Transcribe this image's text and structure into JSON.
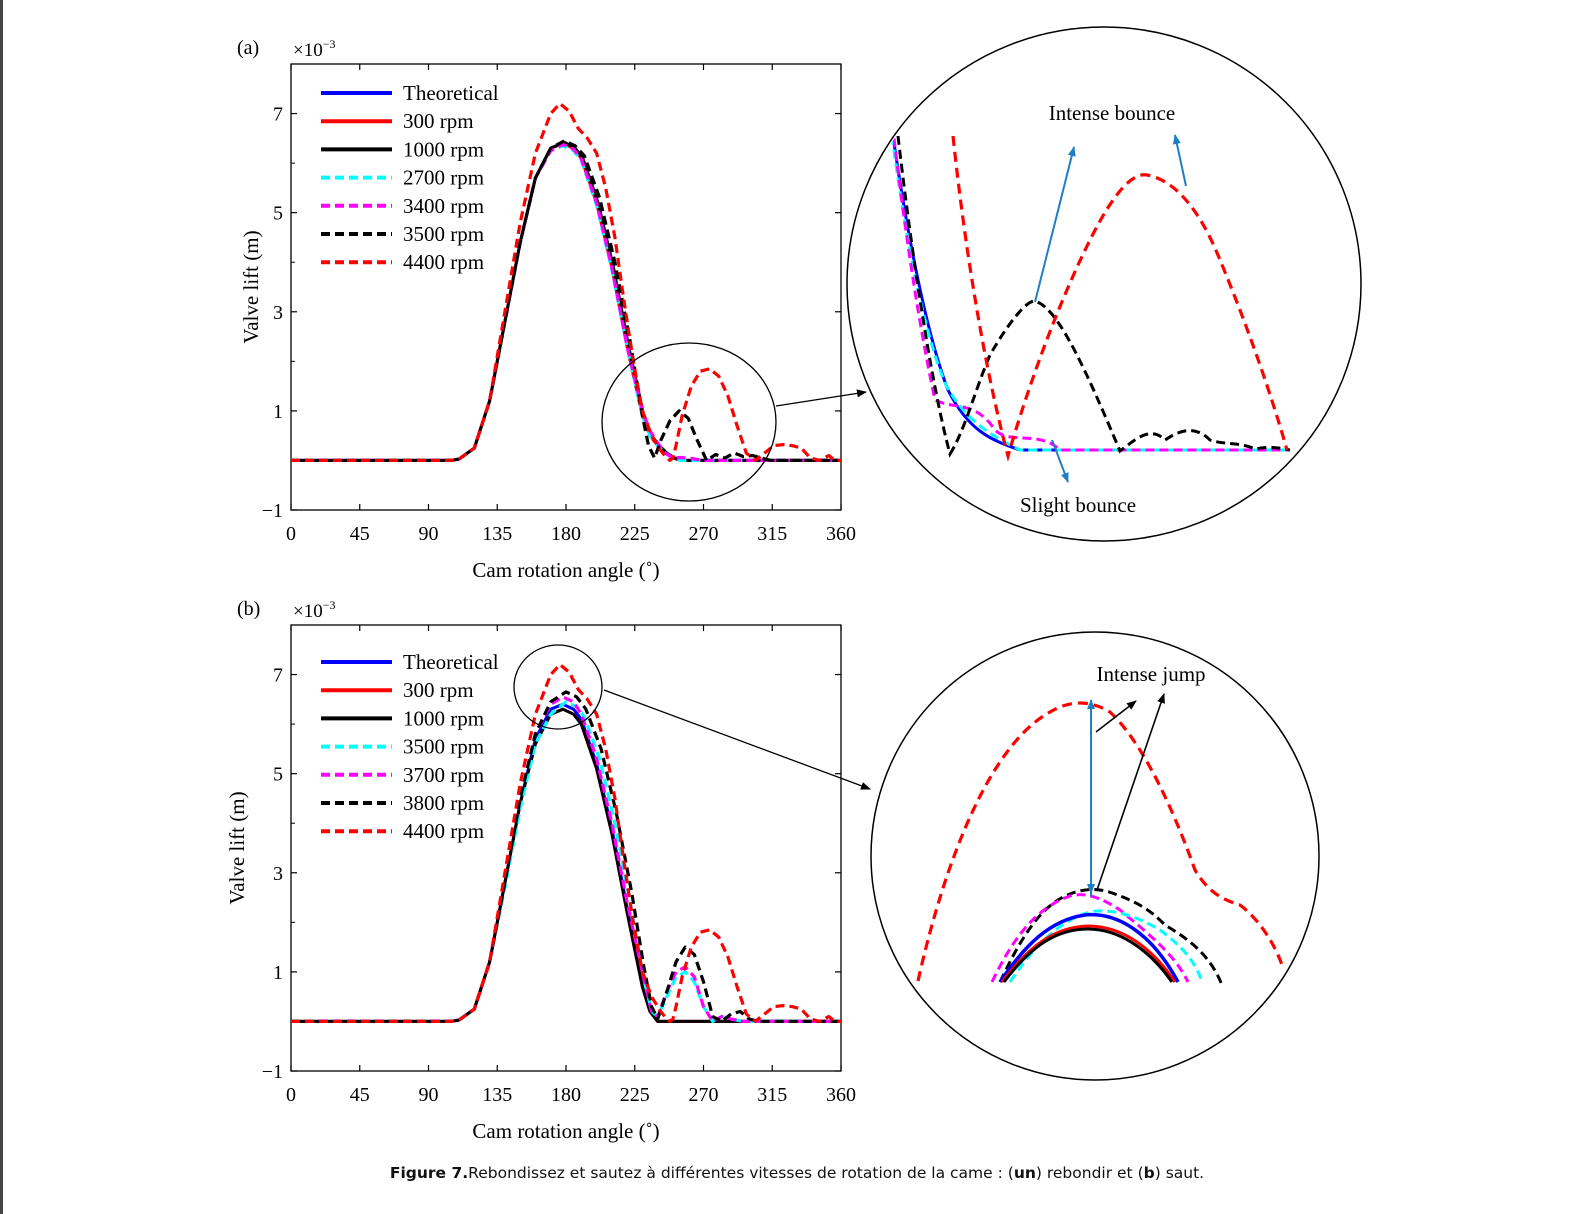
{
  "caption": {
    "label": "Figure 7.",
    "text_1": "Rebondissez et sautez à différentes vitesses de rotation de la came : (",
    "bold_a": "un",
    "text_2": ") rebondir et (",
    "bold_b": "b",
    "text_3": ") saut."
  },
  "colors": {
    "theoretical": "#0000ff",
    "rpm300": "#ff0000",
    "rpm1000": "#000000",
    "cyan": "#00ffff",
    "magenta": "#ff00ff",
    "black_dashed": "#000000",
    "red_dashed": "#ff0000",
    "annotation_blue": "#1f7fc4"
  },
  "chart_data": [
    {
      "panel_label": "(a)",
      "type": "line",
      "scale_label": "×10",
      "scale_exponent": "−3",
      "xlabel": "Cam rotation angle (˚)",
      "ylabel": "Valve lift (m)",
      "xlim": [
        0,
        360
      ],
      "ylim": [
        -1,
        8
      ],
      "xticks": [
        "0",
        "45",
        "90",
        "135",
        "180",
        "225",
        "270",
        "315",
        "360"
      ],
      "yticks": [
        "−1",
        "1",
        "3",
        "5",
        "7"
      ],
      "legend_position": "top-left",
      "series": [
        {
          "name": "Theoretical",
          "style": "solid",
          "color": "#0000ff",
          "x": [
            0,
            105,
            110,
            120,
            130,
            140,
            150,
            160,
            170,
            178,
            185,
            190,
            200,
            210,
            220,
            230,
            235,
            240,
            245,
            250,
            255,
            360
          ],
          "y": [
            0,
            0,
            0.03,
            0.25,
            1.2,
            2.8,
            4.4,
            5.7,
            6.3,
            6.4,
            6.3,
            6.1,
            5.2,
            3.9,
            2.3,
            0.9,
            0.5,
            0.3,
            0.15,
            0.05,
            0,
            0
          ]
        },
        {
          "name": "300   rpm",
          "style": "solid",
          "color": "#ff0000",
          "x": [
            0,
            105,
            110,
            120,
            130,
            140,
            150,
            160,
            170,
            178,
            185,
            190,
            200,
            210,
            220,
            230,
            235,
            240,
            245,
            250,
            255,
            360
          ],
          "y": [
            0,
            0,
            0.03,
            0.25,
            1.2,
            2.8,
            4.4,
            5.7,
            6.3,
            6.4,
            6.3,
            6.1,
            5.2,
            3.9,
            2.3,
            0.9,
            0.5,
            0.3,
            0.15,
            0.05,
            0,
            0
          ]
        },
        {
          "name": "1000 rpm",
          "style": "solid",
          "color": "#000000",
          "x": [
            0,
            105,
            110,
            120,
            130,
            140,
            150,
            160,
            170,
            179,
            186,
            191,
            201,
            211,
            221,
            231,
            236,
            241,
            246,
            251,
            256,
            360
          ],
          "y": [
            0,
            0,
            0.03,
            0.25,
            1.2,
            2.8,
            4.4,
            5.7,
            6.3,
            6.42,
            6.3,
            6.1,
            5.2,
            3.9,
            2.3,
            0.9,
            0.5,
            0.3,
            0.15,
            0.05,
            0,
            0
          ]
        },
        {
          "name": "2700 rpm",
          "style": "dashed",
          "color": "#00ffff",
          "x": [
            0,
            105,
            110,
            120,
            130,
            140,
            150,
            160,
            170,
            178,
            185,
            190,
            200,
            210,
            220,
            230,
            235,
            240,
            245,
            250,
            255,
            360
          ],
          "y": [
            0,
            0,
            0.03,
            0.25,
            1.2,
            2.8,
            4.4,
            5.7,
            6.25,
            6.35,
            6.25,
            6.05,
            5.15,
            3.85,
            2.3,
            0.9,
            0.5,
            0.3,
            0.15,
            0.05,
            0,
            0
          ]
        },
        {
          "name": "3400 rpm",
          "style": "dashed",
          "color": "#ff00ff",
          "x": [
            0,
            105,
            110,
            120,
            130,
            140,
            150,
            160,
            170,
            178,
            185,
            190,
            200,
            210,
            220,
            230,
            235,
            240,
            245,
            250,
            255,
            262,
            270,
            360
          ],
          "y": [
            0,
            0,
            0.03,
            0.25,
            1.2,
            2.8,
            4.4,
            5.7,
            6.25,
            6.38,
            6.28,
            6.08,
            5.2,
            3.9,
            2.3,
            1.0,
            0.6,
            0.35,
            0.15,
            0.05,
            0.06,
            0.04,
            0,
            0
          ]
        },
        {
          "name": "3500 rpm",
          "style": "dashed",
          "color": "#000000",
          "x": [
            0,
            105,
            110,
            120,
            130,
            140,
            150,
            160,
            170,
            179,
            186,
            192,
            202,
            212,
            222,
            230,
            234,
            238,
            242,
            248,
            254,
            260,
            266,
            272,
            278,
            284,
            290,
            296,
            302,
            308,
            314,
            360
          ],
          "y": [
            0,
            0,
            0.03,
            0.25,
            1.2,
            2.8,
            4.4,
            5.7,
            6.3,
            6.45,
            6.35,
            6.15,
            5.3,
            4.0,
            2.4,
            0.9,
            0.3,
            0.05,
            0.4,
            0.8,
            1.0,
            0.85,
            0.4,
            0.0,
            0.12,
            0.05,
            0.15,
            0.08,
            0.1,
            0.05,
            0,
            0
          ]
        },
        {
          "name": "4400 rpm",
          "style": "dashed",
          "color": "#ff0000",
          "x": [
            0,
            105,
            110,
            120,
            130,
            140,
            150,
            160,
            170,
            176,
            182,
            188,
            194,
            200,
            206,
            212,
            218,
            224,
            230,
            236,
            242,
            246,
            248,
            250,
            252,
            256,
            262,
            268,
            274,
            280,
            286,
            292,
            298,
            304,
            310,
            316,
            322,
            328,
            334,
            340,
            346,
            352,
            356,
            360
          ],
          "y": [
            0,
            0,
            0.03,
            0.25,
            1.2,
            3.0,
            4.8,
            6.2,
            7.0,
            7.2,
            7.05,
            6.7,
            6.5,
            6.2,
            5.5,
            4.5,
            3.2,
            2.0,
            1.0,
            0.5,
            0.2,
            0.05,
            0,
            0.05,
            0.3,
            0.9,
            1.5,
            1.8,
            1.85,
            1.7,
            1.3,
            0.7,
            0.15,
            0,
            0.15,
            0.3,
            0.32,
            0.3,
            0.25,
            0.05,
            0,
            0.1,
            0,
            0
          ]
        }
      ],
      "inset": {
        "annotations": [
          "Intense bounce",
          "Slight bounce"
        ]
      }
    },
    {
      "panel_label": "(b)",
      "type": "line",
      "scale_label": "×10",
      "scale_exponent": "−3",
      "xlabel": "Cam rotation angle (˚)",
      "ylabel": "Valve lift (m)",
      "xlim": [
        0,
        360
      ],
      "ylim": [
        -1,
        8
      ],
      "xticks": [
        "0",
        "45",
        "90",
        "135",
        "180",
        "225",
        "270",
        "315",
        "360"
      ],
      "yticks": [
        "−1",
        "1",
        "3",
        "5",
        "7"
      ],
      "legend_position": "top-left",
      "series": [
        {
          "name": "Theoretical",
          "style": "solid",
          "color": "#0000ff",
          "x": [
            0,
            105,
            110,
            120,
            130,
            140,
            150,
            160,
            170,
            178,
            185,
            190,
            200,
            210,
            220,
            230,
            235,
            240,
            360
          ],
          "y": [
            0,
            0,
            0.03,
            0.25,
            1.2,
            2.8,
            4.4,
            5.7,
            6.3,
            6.4,
            6.3,
            6.1,
            5.2,
            3.9,
            2.3,
            0.7,
            0.2,
            0,
            0
          ]
        },
        {
          "name": "300   rpm",
          "style": "solid",
          "color": "#ff0000",
          "x": [
            0,
            105,
            110,
            120,
            130,
            140,
            150,
            160,
            170,
            178,
            185,
            190,
            200,
            210,
            220,
            230,
            235,
            240,
            360
          ],
          "y": [
            0,
            0,
            0.03,
            0.25,
            1.2,
            2.8,
            4.4,
            5.6,
            6.2,
            6.3,
            6.2,
            6.0,
            5.1,
            3.8,
            2.2,
            0.7,
            0.2,
            0,
            0
          ]
        },
        {
          "name": "1000 rpm",
          "style": "solid",
          "color": "#000000",
          "x": [
            0,
            105,
            110,
            120,
            130,
            140,
            150,
            160,
            170,
            178,
            185,
            190,
            200,
            210,
            220,
            230,
            235,
            240,
            360
          ],
          "y": [
            0,
            0,
            0.03,
            0.25,
            1.2,
            2.8,
            4.4,
            5.6,
            6.2,
            6.3,
            6.2,
            6.0,
            5.1,
            3.8,
            2.2,
            0.7,
            0.2,
            0,
            0
          ]
        },
        {
          "name": "3500 rpm",
          "style": "dashed",
          "color": "#00ffff",
          "x": [
            0,
            105,
            110,
            120,
            130,
            140,
            150,
            160,
            170,
            180,
            187,
            192,
            202,
            212,
            222,
            230,
            236,
            240,
            246,
            252,
            258,
            264,
            270,
            276,
            282,
            288,
            296,
            360
          ],
          "y": [
            0,
            0,
            0.03,
            0.25,
            1.2,
            2.7,
            4.3,
            5.6,
            6.2,
            6.45,
            6.35,
            6.15,
            5.3,
            4.0,
            2.4,
            1.0,
            0.2,
            0.1,
            0.5,
            0.9,
            1.0,
            0.8,
            0.3,
            0,
            0.1,
            0.05,
            0,
            0
          ]
        },
        {
          "name": "3700 rpm",
          "style": "dashed",
          "color": "#ff00ff",
          "x": [
            0,
            105,
            110,
            120,
            130,
            140,
            150,
            160,
            170,
            178,
            185,
            190,
            200,
            210,
            220,
            230,
            236,
            240,
            246,
            252,
            258,
            264,
            270,
            276,
            282,
            288,
            296,
            360
          ],
          "y": [
            0,
            0,
            0.03,
            0.25,
            1.2,
            2.8,
            4.5,
            5.8,
            6.4,
            6.55,
            6.45,
            6.2,
            5.3,
            4.0,
            2.4,
            1.0,
            0.2,
            0.1,
            0.6,
            1.0,
            1.1,
            0.9,
            0.3,
            0,
            0.1,
            0.05,
            0,
            0
          ]
        },
        {
          "name": "3800 rpm",
          "style": "dashed",
          "color": "#000000",
          "x": [
            0,
            105,
            110,
            120,
            130,
            140,
            150,
            160,
            170,
            180,
            187,
            193,
            203,
            213,
            223,
            231,
            236,
            240,
            246,
            252,
            258,
            264,
            270,
            276,
            282,
            288,
            294,
            300,
            306,
            360
          ],
          "y": [
            0,
            0,
            0.03,
            0.25,
            1.2,
            2.8,
            4.5,
            5.8,
            6.45,
            6.65,
            6.55,
            6.3,
            5.5,
            4.2,
            2.6,
            1.1,
            0.3,
            0.05,
            0.6,
            1.2,
            1.5,
            1.35,
            0.8,
            0.1,
            0,
            0.15,
            0.2,
            0.05,
            0,
            0
          ]
        },
        {
          "name": "4400 rpm",
          "style": "dashed",
          "color": "#ff0000",
          "x": [
            0,
            105,
            110,
            120,
            130,
            140,
            150,
            160,
            170,
            176,
            182,
            188,
            194,
            200,
            206,
            212,
            218,
            224,
            230,
            236,
            242,
            246,
            248,
            250,
            252,
            256,
            262,
            268,
            274,
            280,
            286,
            292,
            298,
            304,
            310,
            316,
            322,
            328,
            334,
            340,
            346,
            352,
            356,
            360
          ],
          "y": [
            0,
            0,
            0.03,
            0.25,
            1.2,
            3.0,
            4.8,
            6.2,
            7.0,
            7.2,
            7.05,
            6.7,
            6.5,
            6.2,
            5.5,
            4.5,
            3.2,
            2.0,
            1.0,
            0.5,
            0.2,
            0.05,
            0,
            0.05,
            0.3,
            0.9,
            1.5,
            1.8,
            1.85,
            1.7,
            1.3,
            0.7,
            0.15,
            0,
            0.15,
            0.3,
            0.32,
            0.3,
            0.25,
            0.05,
            0,
            0.1,
            0,
            0
          ]
        }
      ],
      "inset": {
        "annotations": [
          "Intense jump"
        ]
      }
    }
  ]
}
